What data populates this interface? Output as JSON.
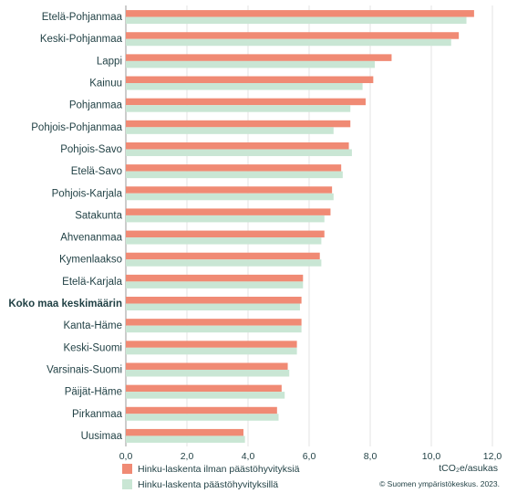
{
  "chart_data": {
    "type": "bar",
    "orientation": "horizontal",
    "categories": [
      "Etelä-Pohjanmaa",
      "Keski-Pohjanmaa",
      "Lappi",
      "Kainuu",
      "Pohjanmaa",
      "Pohjois-Pohjanmaa",
      "Pohjois-Savo",
      "Etelä-Savo",
      "Pohjois-Karjala",
      "Satakunta",
      "Ahvenanmaa",
      "Kymenlaakso",
      "Etelä-Karjala",
      "Koko maa keskimäärin",
      "Kanta-Häme",
      "Keski-Suomi",
      "Varsinais-Suomi",
      "Päijät-Häme",
      "Pirkanmaa",
      "Uusimaa"
    ],
    "highlight_category": "Koko maa keskimäärin",
    "series": [
      {
        "name": "Hinku-laskenta ilman päästöhyvityksiä",
        "color": "#f08a74",
        "values": [
          11.4,
          10.9,
          8.7,
          8.1,
          7.85,
          7.35,
          7.3,
          7.05,
          6.75,
          6.7,
          6.5,
          6.35,
          5.8,
          5.75,
          5.75,
          5.6,
          5.3,
          5.1,
          4.95,
          3.85
        ]
      },
      {
        "name": "Hinku-laskenta päästöhyvityksillä",
        "color": "#c9e6d4",
        "values": [
          11.15,
          10.65,
          8.15,
          7.75,
          7.35,
          6.8,
          7.4,
          7.1,
          6.8,
          6.5,
          6.4,
          6.4,
          5.8,
          5.7,
          5.75,
          5.6,
          5.35,
          5.2,
          5.0,
          3.9
        ]
      }
    ],
    "xlim": [
      0,
      12
    ],
    "xticks": [
      "0,0",
      "2,0",
      "4,0",
      "6,0",
      "8,0",
      "10,0",
      "12,0"
    ],
    "xtick_values": [
      0,
      2,
      4,
      6,
      8,
      10,
      12
    ],
    "unit_label": "tCO₂e/asukas",
    "grid": true,
    "legend_position": "bottom-left"
  },
  "source": "© Suomen ympäristökeskus. 2023."
}
